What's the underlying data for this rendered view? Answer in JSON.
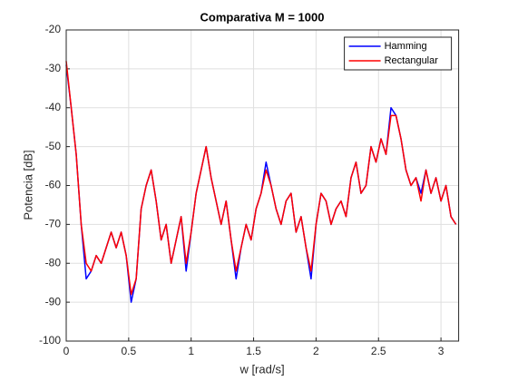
{
  "chart_data": {
    "type": "line",
    "title": "Comparativa M = 1000",
    "xlabel": "w [rad/s]",
    "ylabel": "Potencia [dB]",
    "x": [
      0,
      0.04,
      0.08,
      0.12,
      0.16,
      0.2,
      0.24,
      0.28,
      0.32,
      0.36,
      0.4,
      0.44,
      0.48,
      0.52,
      0.56,
      0.6,
      0.64,
      0.68,
      0.72,
      0.76,
      0.8,
      0.84,
      0.88,
      0.92,
      0.96,
      1.0,
      1.04,
      1.08,
      1.12,
      1.16,
      1.2,
      1.24,
      1.28,
      1.32,
      1.36,
      1.4,
      1.44,
      1.48,
      1.52,
      1.56,
      1.6,
      1.64,
      1.68,
      1.72,
      1.76,
      1.8,
      1.84,
      1.88,
      1.92,
      1.96,
      2.0,
      2.04,
      2.08,
      2.12,
      2.16,
      2.2,
      2.24,
      2.28,
      2.32,
      2.36,
      2.4,
      2.44,
      2.48,
      2.52,
      2.56,
      2.6,
      2.64,
      2.68,
      2.72,
      2.76,
      2.8,
      2.84,
      2.88,
      2.92,
      2.96,
      3.0,
      3.04,
      3.08,
      3.12
    ],
    "series": [
      {
        "name": "Hamming",
        "color": "#0000ff",
        "values": [
          -29,
          -40,
          -52,
          -70,
          -84,
          -82,
          -78,
          -80,
          -76,
          -72,
          -76,
          -72,
          -78,
          -90,
          -84,
          -66,
          -60,
          -56,
          -64,
          -74,
          -70,
          -80,
          -74,
          -68,
          -82,
          -72,
          -62,
          -56,
          -50,
          -58,
          -64,
          -70,
          -64,
          -74,
          -84,
          -76,
          -70,
          -74,
          -66,
          -62,
          -54,
          -60,
          -66,
          -70,
          -64,
          -62,
          -72,
          -68,
          -76,
          -84,
          -70,
          -62,
          -64,
          -70,
          -66,
          -64,
          -68,
          -58,
          -54,
          -62,
          -60,
          -50,
          -54,
          -48,
          -52,
          -40,
          -42,
          -48,
          -56,
          -60,
          -58,
          -62,
          -56,
          -62,
          -58,
          -64,
          -60,
          -68,
          -70
        ]
      },
      {
        "name": "Rectangular",
        "color": "#ff0000",
        "values": [
          -28,
          -40,
          -52,
          -70,
          -80,
          -82,
          -78,
          -80,
          -76,
          -72,
          -76,
          -72,
          -78,
          -88,
          -84,
          -66,
          -60,
          -56,
          -64,
          -74,
          -70,
          -80,
          -74,
          -68,
          -80,
          -72,
          -62,
          -56,
          -50,
          -58,
          -64,
          -70,
          -64,
          -74,
          -82,
          -76,
          -70,
          -74,
          -66,
          -62,
          -56,
          -60,
          -66,
          -70,
          -64,
          -62,
          -72,
          -68,
          -76,
          -82,
          -70,
          -62,
          -64,
          -70,
          -66,
          -64,
          -68,
          -58,
          -54,
          -62,
          -60,
          -50,
          -54,
          -48,
          -52,
          -42,
          -42,
          -48,
          -56,
          -60,
          -58,
          -64,
          -56,
          -62,
          -58,
          -64,
          -60,
          -68,
          -70
        ]
      }
    ],
    "xlim": [
      0,
      3.1416
    ],
    "ylim": [
      -100,
      -20
    ],
    "xticks": [
      0,
      0.5,
      1,
      1.5,
      2,
      2.5,
      3
    ],
    "yticks": [
      -100,
      -90,
      -80,
      -70,
      -60,
      -50,
      -40,
      -30,
      -20
    ],
    "grid": true,
    "legend": "northeast"
  }
}
